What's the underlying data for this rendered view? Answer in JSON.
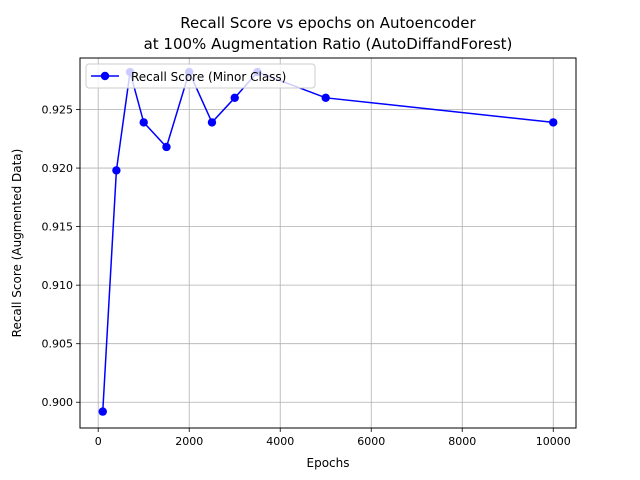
{
  "chart_data": {
    "type": "line",
    "title": "Recall Score vs epochs on Autoencoder",
    "subtitle": "at 100% Augmentation Ratio (AutoDiffandForest)",
    "xlabel": "Epochs",
    "ylabel": "Recall Score (Augmented Data)",
    "xlim": [
      -400,
      10500
    ],
    "ylim": [
      0.8978,
      0.9294
    ],
    "xticks": [
      0,
      2000,
      4000,
      6000,
      8000,
      10000
    ],
    "yticks": [
      0.9,
      0.905,
      0.91,
      0.915,
      0.92,
      0.925
    ],
    "xtick_labels": [
      "0",
      "2000",
      "4000",
      "6000",
      "8000",
      "10000"
    ],
    "ytick_labels": [
      "0.900",
      "0.905",
      "0.910",
      "0.915",
      "0.920",
      "0.925"
    ],
    "grid": true,
    "legend_position": "upper-left",
    "series": [
      {
        "name": "Recall Score (Minor Class)",
        "color": "#0000ff",
        "marker": "circle",
        "x": [
          100,
          400,
          700,
          1000,
          1500,
          2000,
          2500,
          3000,
          3500,
          5000,
          10000
        ],
        "y": [
          0.8992,
          0.9198,
          0.9282,
          0.9239,
          0.9218,
          0.9282,
          0.9239,
          0.926,
          0.9282,
          0.926,
          0.9239
        ]
      }
    ]
  }
}
